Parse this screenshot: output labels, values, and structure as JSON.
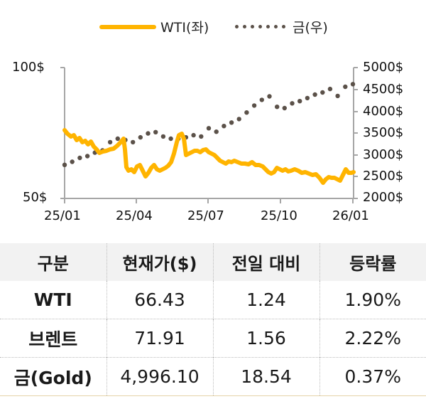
{
  "legend": [
    {
      "label": "WTI(좌)",
      "color": "#FFB400",
      "style": "line"
    },
    {
      "label": "금(우)",
      "color": "#5B5149",
      "style": "dotted"
    }
  ],
  "chart_data": {
    "type": "line",
    "title": "",
    "x_tick_labels": [
      "25/01",
      "25/04",
      "25/07",
      "25/10",
      "26/01"
    ],
    "y_left": {
      "label": "WTI",
      "ticks": [
        "100$",
        "50$"
      ],
      "range": [
        50,
        100
      ]
    },
    "y_right": {
      "label": "금",
      "ticks": [
        "5000$",
        "4500$",
        "4000$",
        "3500$",
        "3000$",
        "2500$",
        "2000$"
      ],
      "range": [
        2000,
        5000
      ]
    },
    "legend_position": "top",
    "grid": false,
    "series": [
      {
        "name": "WTI(좌)",
        "axis": "left",
        "color": "#FFB400",
        "points": [
          [
            "25/01",
            76.1
          ],
          [
            "25/01",
            73.6
          ],
          [
            "25/02",
            72.3
          ],
          [
            "25/02",
            71.5
          ],
          [
            "25/02",
            70.1
          ],
          [
            "25/03",
            67.4
          ],
          [
            "25/03",
            68.2
          ],
          [
            "25/03",
            68.8
          ],
          [
            "25/04",
            71.5
          ],
          [
            "25/04",
            72.8
          ],
          [
            "25/04",
            61.9
          ],
          [
            "25/04",
            60.6
          ],
          [
            "25/05",
            62.8
          ],
          [
            "25/05",
            58.4
          ],
          [
            "25/05",
            61.4
          ],
          [
            "25/05",
            60.6
          ],
          [
            "25/06",
            62.0
          ],
          [
            "25/06",
            67.4
          ],
          [
            "25/06",
            74.7
          ],
          [
            "25/06",
            66.6
          ],
          [
            "25/07",
            68.0
          ],
          [
            "25/07",
            68.8
          ],
          [
            "25/07",
            67.1
          ],
          [
            "25/08",
            64.7
          ],
          [
            "25/08",
            63.3
          ],
          [
            "25/08",
            63.9
          ],
          [
            "25/09",
            63.0
          ],
          [
            "25/09",
            62.8
          ],
          [
            "25/09",
            60.6
          ],
          [
            "25/10",
            59.8
          ],
          [
            "25/10",
            61.1
          ],
          [
            "25/10",
            60.6
          ],
          [
            "25/11",
            60.6
          ],
          [
            "25/11",
            59.0
          ],
          [
            "25/12",
            56.0
          ],
          [
            "25/12",
            57.9
          ],
          [
            "25/12",
            57.3
          ],
          [
            "26/01",
            61.1
          ],
          [
            "26/01",
            60.0
          ]
        ]
      },
      {
        "name": "금(우)",
        "axis": "right",
        "color": "#5B5149",
        "points": [
          [
            "25/01",
            2770
          ],
          [
            "25/01",
            2840
          ],
          [
            "25/02",
            2930
          ],
          [
            "25/02",
            2970
          ],
          [
            "25/03",
            3050
          ],
          [
            "25/03",
            3100
          ],
          [
            "25/04",
            3290
          ],
          [
            "25/04",
            3370
          ],
          [
            "25/04",
            3340
          ],
          [
            "25/05",
            3290
          ],
          [
            "25/05",
            3400
          ],
          [
            "25/05",
            3490
          ],
          [
            "25/06",
            3520
          ],
          [
            "25/06",
            3420
          ],
          [
            "25/06",
            3370
          ],
          [
            "25/07",
            3370
          ],
          [
            "25/07",
            3400
          ],
          [
            "25/07",
            3450
          ],
          [
            "25/08",
            3420
          ],
          [
            "25/08",
            3610
          ],
          [
            "25/08",
            3530
          ],
          [
            "25/09",
            3660
          ],
          [
            "25/09",
            3740
          ],
          [
            "25/09",
            3820
          ],
          [
            "25/10",
            3970
          ],
          [
            "25/10",
            4130
          ],
          [
            "25/10",
            4260
          ],
          [
            "25/10",
            4340
          ],
          [
            "25/10",
            4100
          ],
          [
            "25/11",
            4070
          ],
          [
            "25/11",
            4180
          ],
          [
            "25/11",
            4230
          ],
          [
            "25/12",
            4300
          ],
          [
            "25/12",
            4380
          ],
          [
            "25/12",
            4430
          ],
          [
            "26/01",
            4510
          ],
          [
            "26/01",
            4350
          ],
          [
            "26/01",
            4560
          ],
          [
            "26/01",
            4620
          ]
        ]
      }
    ]
  },
  "table": {
    "headers": [
      "구분",
      "현재가($)",
      "전일 대비",
      "등락률"
    ],
    "rows": [
      {
        "name": "WTI",
        "price": "66.43",
        "change": "1.24",
        "rate": "1.90%"
      },
      {
        "name": "브렌트",
        "price": "71.91",
        "change": "1.56",
        "rate": "2.22%"
      },
      {
        "name": "금(Gold)",
        "price": "4,996.10",
        "change": "18.54",
        "rate": "0.37%"
      }
    ]
  }
}
